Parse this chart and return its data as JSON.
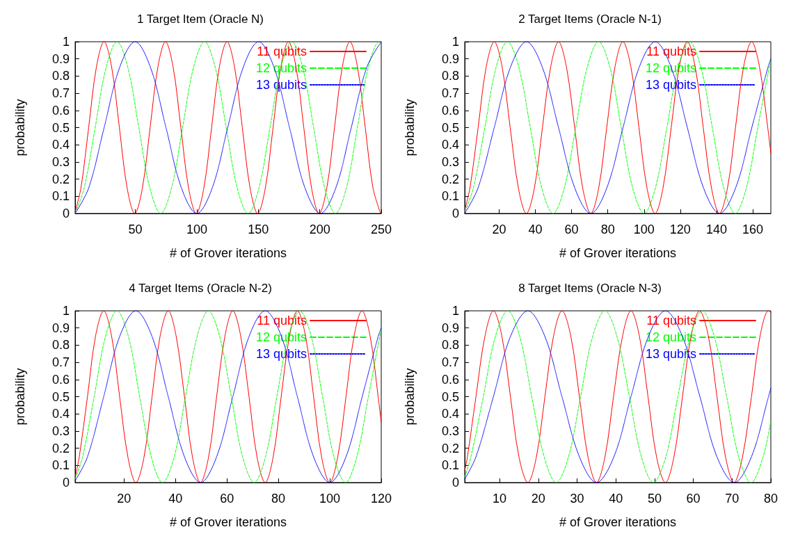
{
  "chart_data": [
    {
      "type": "line",
      "title": "1 Target Item (Oracle N)",
      "xlabel": "# of Grover iterations",
      "ylabel": "probability",
      "xlim": [
        1,
        250
      ],
      "xticks": [
        50,
        100,
        150,
        200,
        250
      ],
      "ylim": [
        0,
        1
      ],
      "yticks": [
        0,
        0.1,
        0.2,
        0.3,
        0.4,
        0.5,
        0.6,
        0.7,
        0.8,
        0.9,
        1
      ],
      "legend": "top right",
      "series": [
        {
          "name": "11 qubits",
          "color": "#ff0000",
          "line_style": "solid",
          "x": [
            1,
            5.75,
            12,
            18.25,
            24.5,
            30.75,
            37,
            43.25,
            49.5,
            55.75,
            62,
            68.25,
            74.5,
            80.75,
            87,
            93.25,
            99.5,
            105.75,
            112,
            118.25,
            124.5,
            130.75,
            137,
            143.25,
            149.5,
            155.75,
            162,
            168.25,
            174.5,
            180.75,
            187,
            193.25,
            199.5,
            205.75,
            212,
            218.25,
            224.5,
            230.75,
            237,
            243.25,
            249.5
          ],
          "values": [
            0.01,
            0.15,
            0.5,
            0.85,
            1,
            0.85,
            0.5,
            0.15,
            0,
            0.15,
            0.5,
            0.85,
            1,
            0.85,
            0.5,
            0.15,
            0,
            0.15,
            0.5,
            0.85,
            1,
            0.85,
            0.5,
            0.15,
            0,
            0.15,
            0.5,
            0.85,
            1,
            0.85,
            0.5,
            0.15,
            0,
            0.15,
            0.5,
            0.85,
            1,
            0.85,
            0.5,
            0.15,
            0
          ]
        },
        {
          "name": "12 qubits",
          "color": "#00ff00",
          "line_style": "dashed",
          "x": [
            1,
            8.4,
            17.3,
            26.2,
            35.1,
            43.9,
            52.8,
            61.7,
            70.6,
            79.5,
            88.4,
            97.3,
            106.2,
            115,
            123.9,
            132.8,
            141.7,
            150.6,
            159.5,
            168.4,
            177.3,
            186.1,
            195,
            203.9,
            212.8,
            221.7,
            230.6,
            239.5,
            248.4,
            250
          ],
          "values": [
            0,
            0.15,
            0.5,
            0.85,
            1,
            0.85,
            0.5,
            0.15,
            0,
            0.15,
            0.5,
            0.85,
            1,
            0.85,
            0.5,
            0.15,
            0,
            0.15,
            0.5,
            0.85,
            1,
            0.85,
            0.5,
            0.15,
            0,
            0.15,
            0.5,
            0.85,
            1,
            0.99
          ]
        },
        {
          "name": "13 qubits",
          "color": "#0000ff",
          "line_style": "dotted",
          "x": [
            1,
            12.1,
            24.6,
            37.2,
            49.8,
            62.3,
            74.9,
            87.4,
            100,
            112.6,
            125.1,
            137.7,
            150.3,
            162.8,
            175.4,
            187.9,
            200.5,
            213.1,
            225.6,
            238.2,
            250
          ],
          "values": [
            0,
            0.15,
            0.5,
            0.85,
            1,
            0.85,
            0.5,
            0.15,
            0,
            0.15,
            0.5,
            0.85,
            1,
            0.85,
            0.5,
            0.15,
            0,
            0.15,
            0.5,
            0.85,
            1
          ]
        }
      ]
    },
    {
      "type": "line",
      "title": "2 Target Items (Oracle N-1)",
      "xlabel": "# of Grover iterations",
      "ylabel": "probability",
      "xlim": [
        1,
        170
      ],
      "xticks": [
        20,
        40,
        60,
        80,
        100,
        120,
        140,
        160
      ],
      "ylim": [
        0,
        1
      ],
      "yticks": [
        0,
        0.1,
        0.2,
        0.3,
        0.4,
        0.5,
        0.6,
        0.7,
        0.8,
        0.9,
        1
      ],
      "legend": "top right",
      "series": [
        {
          "name": "11 qubits",
          "color": "#ff0000",
          "line_style": "solid",
          "x": [
            1,
            3.9,
            8.4,
            12.8,
            17.3,
            21.7,
            26.1,
            30.6,
            35,
            39.5,
            43.9,
            48.4,
            52.8,
            57.2,
            61.7,
            66.1,
            70.6,
            75,
            79.4,
            83.9,
            88.3,
            92.8,
            97.2,
            101.6,
            106.1,
            110.5,
            115,
            119.4,
            123.9,
            128.3,
            132.7,
            137.2,
            141.6,
            146.1,
            150.5,
            154.9,
            159.4,
            163.8,
            168.3,
            170
          ],
          "values": [
            0.02,
            0.15,
            0.5,
            0.85,
            1,
            0.85,
            0.5,
            0.15,
            0,
            0.15,
            0.5,
            0.85,
            1,
            0.85,
            0.5,
            0.15,
            0,
            0.15,
            0.5,
            0.85,
            1,
            0.85,
            0.5,
            0.15,
            0,
            0.15,
            0.5,
            0.85,
            1,
            0.85,
            0.5,
            0.15,
            0,
            0.15,
            0.5,
            0.85,
            1,
            0.85,
            0.5,
            0.35
          ]
        },
        {
          "name": "12 qubits",
          "color": "#00ff00",
          "line_style": "dashed",
          "x": [
            1,
            5.8,
            12.1,
            18.3,
            24.6,
            30.9,
            37.2,
            43.5,
            49.8,
            56,
            62.3,
            68.6,
            74.9,
            81.2,
            87.4,
            93.7,
            100,
            106.3,
            112.6,
            118.8,
            125.1,
            131.4,
            137.7,
            144,
            150.3,
            156.5,
            162.8,
            169.1,
            170
          ],
          "values": [
            0.01,
            0.15,
            0.5,
            0.85,
            1,
            0.85,
            0.5,
            0.15,
            0,
            0.15,
            0.5,
            0.85,
            1,
            0.85,
            0.5,
            0.15,
            0,
            0.15,
            0.5,
            0.85,
            1,
            0.85,
            0.5,
            0.15,
            0,
            0.15,
            0.5,
            0.85,
            0.89
          ]
        },
        {
          "name": "13 qubits",
          "color": "#0000ff",
          "line_style": "dotted",
          "x": [
            1,
            8.4,
            17.3,
            26.2,
            35.1,
            43.9,
            52.8,
            61.7,
            70.6,
            79.5,
            88.4,
            97.3,
            106.2,
            115,
            123.9,
            132.8,
            141.7,
            150.6,
            159.5,
            168.4,
            170
          ],
          "values": [
            0,
            0.15,
            0.5,
            0.85,
            1,
            0.85,
            0.5,
            0.15,
            0,
            0.15,
            0.5,
            0.85,
            1,
            0.85,
            0.5,
            0.15,
            0,
            0.15,
            0.5,
            0.85,
            0.9
          ]
        }
      ]
    },
    {
      "type": "line",
      "title": "4 Target Items (Oracle N-2)",
      "xlabel": "# of Grover iterations",
      "ylabel": "probability",
      "xlim": [
        1,
        120
      ],
      "xticks": [
        20,
        40,
        60,
        80,
        100,
        120
      ],
      "ylim": [
        0,
        1
      ],
      "yticks": [
        0,
        0.1,
        0.2,
        0.3,
        0.4,
        0.5,
        0.6,
        0.7,
        0.8,
        0.9,
        1
      ],
      "legend": "top right",
      "series": [
        {
          "name": "11 qubits",
          "color": "#ff0000",
          "line_style": "solid",
          "x": [
            1,
            2.6,
            5.8,
            8.9,
            12.1,
            15.2,
            18.3,
            21.5,
            24.6,
            27.8,
            30.9,
            34,
            37.2,
            40.3,
            43.5,
            46.6,
            49.7,
            52.9,
            56,
            59.2,
            62.3,
            65.4,
            68.6,
            71.7,
            74.9,
            78,
            81.1,
            84.3,
            87.4,
            90.6,
            93.7,
            96.8,
            100,
            103.1,
            106.3,
            109.4,
            112.5,
            115.7,
            118.8,
            120
          ],
          "values": [
            0.03,
            0.15,
            0.5,
            0.85,
            1,
            0.85,
            0.5,
            0.15,
            0,
            0.15,
            0.5,
            0.85,
            1,
            0.85,
            0.5,
            0.15,
            0,
            0.15,
            0.5,
            0.85,
            1,
            0.85,
            0.5,
            0.15,
            0,
            0.15,
            0.5,
            0.85,
            1,
            0.85,
            0.5,
            0.15,
            0,
            0.15,
            0.5,
            0.85,
            1,
            0.85,
            0.5,
            0.35
          ]
        },
        {
          "name": "12 qubits",
          "color": "#00ff00",
          "line_style": "dashed",
          "x": [
            1,
            3.9,
            8.4,
            12.8,
            17.3,
            21.7,
            26.1,
            30.6,
            35,
            39.5,
            43.9,
            48.4,
            52.8,
            57.2,
            61.7,
            66.1,
            70.6,
            75,
            79.4,
            83.9,
            88.3,
            92.8,
            97.2,
            101.6,
            106.1,
            110.5,
            115,
            119.4,
            120
          ],
          "values": [
            0.02,
            0.15,
            0.5,
            0.85,
            1,
            0.85,
            0.5,
            0.15,
            0,
            0.15,
            0.5,
            0.85,
            1,
            0.85,
            0.5,
            0.15,
            0,
            0.15,
            0.5,
            0.85,
            1,
            0.85,
            0.5,
            0.15,
            0,
            0.15,
            0.5,
            0.85,
            0.89
          ]
        },
        {
          "name": "13 qubits",
          "color": "#0000ff",
          "line_style": "dotted",
          "x": [
            1,
            5.8,
            12.1,
            18.3,
            24.6,
            30.9,
            37.2,
            43.5,
            49.8,
            56,
            62.3,
            68.6,
            74.9,
            81.2,
            87.4,
            93.7,
            100,
            106.3,
            112.6,
            118.8,
            120
          ],
          "values": [
            0.01,
            0.15,
            0.5,
            0.85,
            1,
            0.85,
            0.5,
            0.15,
            0,
            0.15,
            0.5,
            0.85,
            1,
            0.85,
            0.5,
            0.15,
            0,
            0.15,
            0.5,
            0.85,
            0.9
          ]
        }
      ]
    },
    {
      "type": "line",
      "title": "8 Target Items (Oracle N-3)",
      "xlabel": "# of Grover iterations",
      "ylabel": "probability",
      "xlim": [
        1,
        80
      ],
      "xticks": [
        10,
        20,
        30,
        40,
        50,
        60,
        70,
        80
      ],
      "ylim": [
        0,
        1
      ],
      "yticks": [
        0,
        0.1,
        0.2,
        0.3,
        0.4,
        0.5,
        0.6,
        0.7,
        0.8,
        0.9,
        1
      ],
      "legend": "top right",
      "series": [
        {
          "name": "11 qubits",
          "color": "#ff0000",
          "line_style": "solid",
          "x": [
            1,
            1.7,
            3.9,
            6.2,
            8.4,
            10.6,
            12.8,
            15,
            17.3,
            19.5,
            21.7,
            23.9,
            26.1,
            28.4,
            30.6,
            32.8,
            35,
            37.2,
            39.4,
            41.7,
            43.9,
            46.1,
            48.3,
            50.5,
            52.8,
            55,
            57.2,
            59.4,
            61.6,
            63.9,
            66.1,
            68.3,
            70.5,
            72.7,
            75,
            77.2,
            79.4,
            80
          ],
          "values": [
            0.07,
            0.15,
            0.5,
            0.85,
            1,
            0.85,
            0.5,
            0.15,
            0,
            0.15,
            0.5,
            0.85,
            1,
            0.85,
            0.5,
            0.15,
            0,
            0.15,
            0.5,
            0.85,
            1,
            0.85,
            0.5,
            0.15,
            0,
            0.15,
            0.5,
            0.85,
            1,
            0.85,
            0.5,
            0.15,
            0,
            0.15,
            0.5,
            0.85,
            1,
            0.99
          ]
        },
        {
          "name": "12 qubits",
          "color": "#00ff00",
          "line_style": "dashed",
          "x": [
            1,
            2.6,
            5.8,
            8.9,
            12.1,
            15.2,
            18.3,
            21.5,
            24.6,
            27.8,
            30.9,
            34,
            37.2,
            40.3,
            43.5,
            46.6,
            49.7,
            52.9,
            56,
            59.2,
            62.3,
            65.4,
            68.6,
            71.7,
            74.9,
            78,
            80
          ],
          "values": [
            0.03,
            0.15,
            0.5,
            0.85,
            1,
            0.85,
            0.5,
            0.15,
            0,
            0.15,
            0.5,
            0.85,
            1,
            0.85,
            0.5,
            0.15,
            0,
            0.15,
            0.5,
            0.85,
            1,
            0.85,
            0.5,
            0.15,
            0,
            0.15,
            0.36
          ]
        },
        {
          "name": "13 qubits",
          "color": "#0000ff",
          "line_style": "dotted",
          "x": [
            1,
            3.9,
            8.4,
            12.8,
            17.3,
            21.7,
            26.1,
            30.6,
            35,
            39.5,
            43.9,
            48.4,
            52.8,
            57.2,
            61.7,
            66.1,
            70.6,
            75,
            79.4,
            80
          ],
          "values": [
            0.02,
            0.15,
            0.5,
            0.85,
            1,
            0.85,
            0.5,
            0.15,
            0,
            0.15,
            0.5,
            0.85,
            1,
            0.85,
            0.5,
            0.15,
            0,
            0.15,
            0.5,
            0.55
          ]
        }
      ]
    }
  ]
}
